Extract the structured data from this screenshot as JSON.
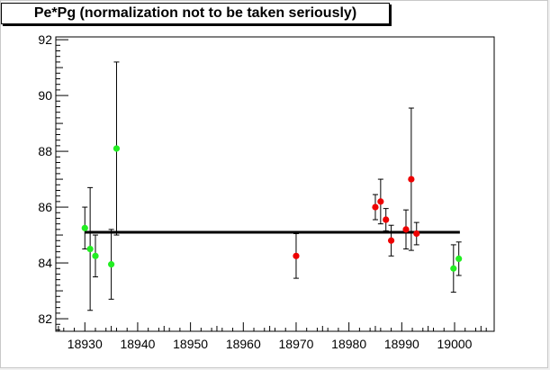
{
  "chart_data": {
    "type": "scatter",
    "title": "Pe*Pg (normalization not to be taken seriously)",
    "xlabel": "",
    "ylabel": "",
    "xlim": [
      18924.5,
      19007.5
    ],
    "ylim": [
      81.55,
      92.1
    ],
    "x_ticks": [
      18930,
      18940,
      18950,
      18960,
      18970,
      18980,
      18990,
      19000
    ],
    "y_ticks": [
      82,
      84,
      86,
      88,
      90,
      92
    ],
    "grid": false,
    "legend": "none",
    "colors": {
      "green": "#22ee22",
      "red": "#ee0000",
      "fit_line": "#000000",
      "error_bar": "#000000"
    },
    "fit_line": {
      "y": 85.1,
      "x_start": 18930,
      "x_end": 19001
    },
    "series": [
      {
        "color": "green",
        "points": [
          {
            "x": 18930.0,
            "y": 85.25,
            "err": 0.75
          },
          {
            "x": 18931.0,
            "y": 84.5,
            "err": 2.2
          },
          {
            "x": 18932.0,
            "y": 84.25,
            "err": 0.75
          },
          {
            "x": 18935.0,
            "y": 83.95,
            "err": 1.25
          },
          {
            "x": 18936.0,
            "y": 88.1,
            "err": 3.1
          },
          {
            "x": 18999.8,
            "y": 83.8,
            "err": 0.85
          },
          {
            "x": 19000.8,
            "y": 84.15,
            "err": 0.6
          }
        ]
      },
      {
        "color": "red",
        "points": [
          {
            "x": 18970.0,
            "y": 84.25,
            "err": 0.8
          },
          {
            "x": 18985.0,
            "y": 86.0,
            "err": 0.45
          },
          {
            "x": 18986.0,
            "y": 86.2,
            "err": 0.8
          },
          {
            "x": 18987.0,
            "y": 85.55,
            "err": 0.4
          },
          {
            "x": 18988.0,
            "y": 84.8,
            "err": 0.55
          },
          {
            "x": 18990.8,
            "y": 85.2,
            "err": 0.7
          },
          {
            "x": 18991.8,
            "y": 87.0,
            "err": 2.55
          },
          {
            "x": 18992.8,
            "y": 85.05,
            "err": 0.4
          }
        ]
      }
    ]
  }
}
